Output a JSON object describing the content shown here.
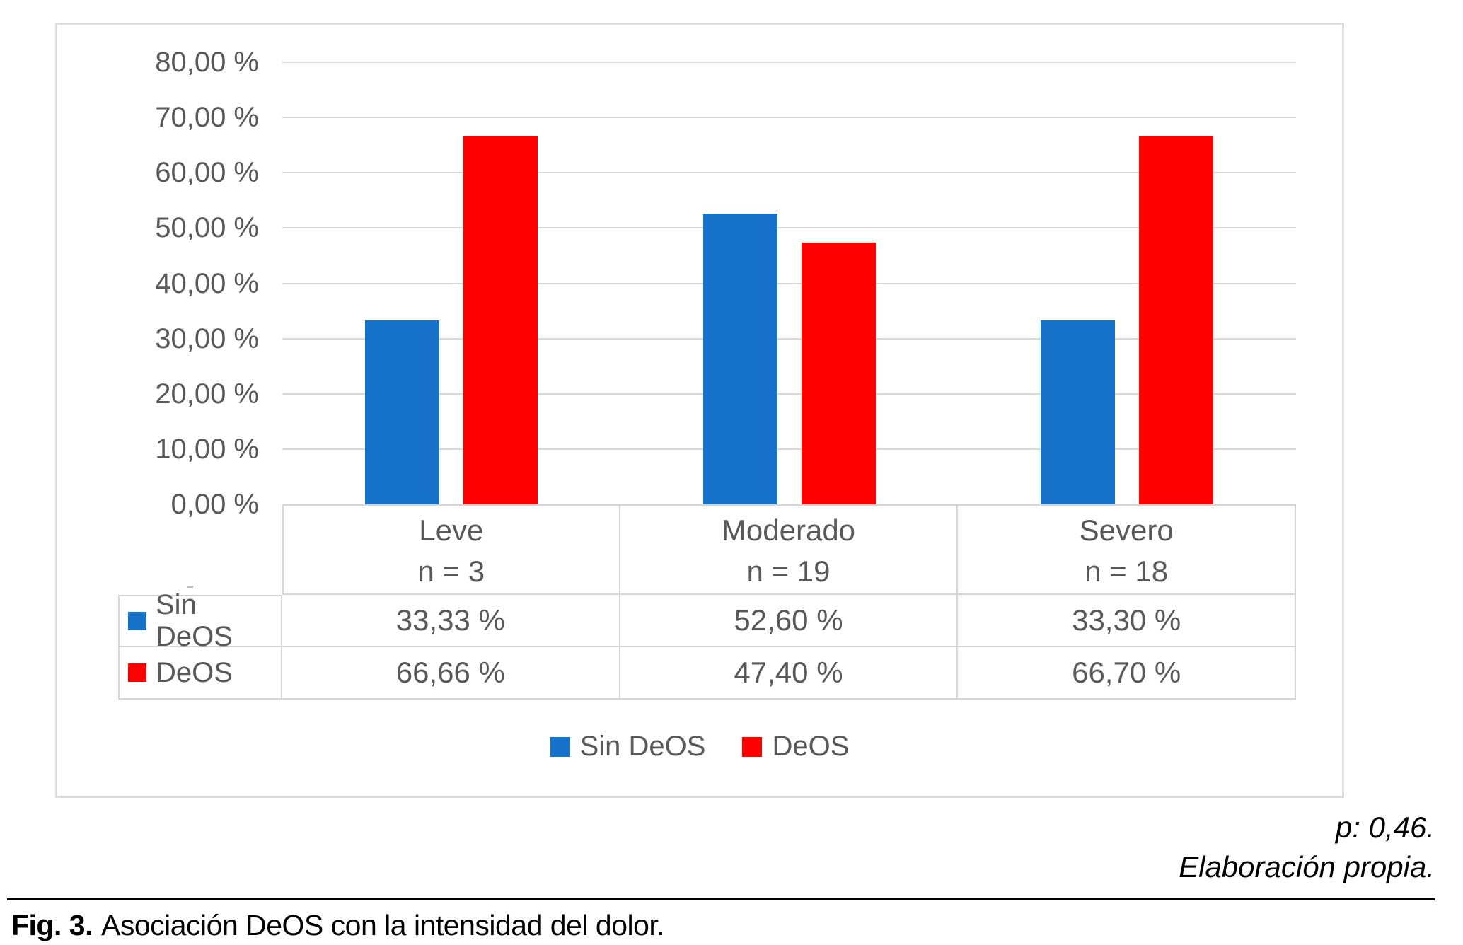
{
  "chart_data": {
    "type": "bar",
    "title": "",
    "categories": [
      "Leve",
      "Moderado",
      "Severo"
    ],
    "category_sublabels": [
      "n = 3",
      "n = 19",
      "n = 18"
    ],
    "series": [
      {
        "name": "Sin DeOS",
        "color": "#1772C9",
        "values": [
          33.33,
          52.6,
          33.3
        ],
        "value_labels": [
          "33,33 %",
          "52,60 %",
          "33,30 %"
        ]
      },
      {
        "name": "DeOS",
        "color": "#FF0000",
        "values": [
          66.66,
          47.4,
          66.7
        ],
        "value_labels": [
          "66,66 %",
          "47,40 %",
          "66,70 %"
        ]
      }
    ],
    "y_axis": {
      "min": 0,
      "max": 80,
      "step": 10,
      "tick_labels": [
        "0,00 %",
        "10,00 %",
        "20,00 %",
        "30,00 %",
        "40,00 %",
        "50,00 %",
        "60,00 %",
        "70,00 %",
        "80,00 %"
      ]
    },
    "grid": true,
    "legend_position": "bottom-inside",
    "data_table_shown": true
  },
  "notes": {
    "p_value": "p: 0,46.",
    "source": "Elaboración propia."
  },
  "caption": {
    "tag": "Fig. 3.",
    "text": "Asociación DeOS con la intensidad del dolor."
  },
  "style": {
    "grid_color": "#D9D9D9",
    "table_border_color": "#D6D6D6",
    "axis_text_color": "#595959"
  }
}
